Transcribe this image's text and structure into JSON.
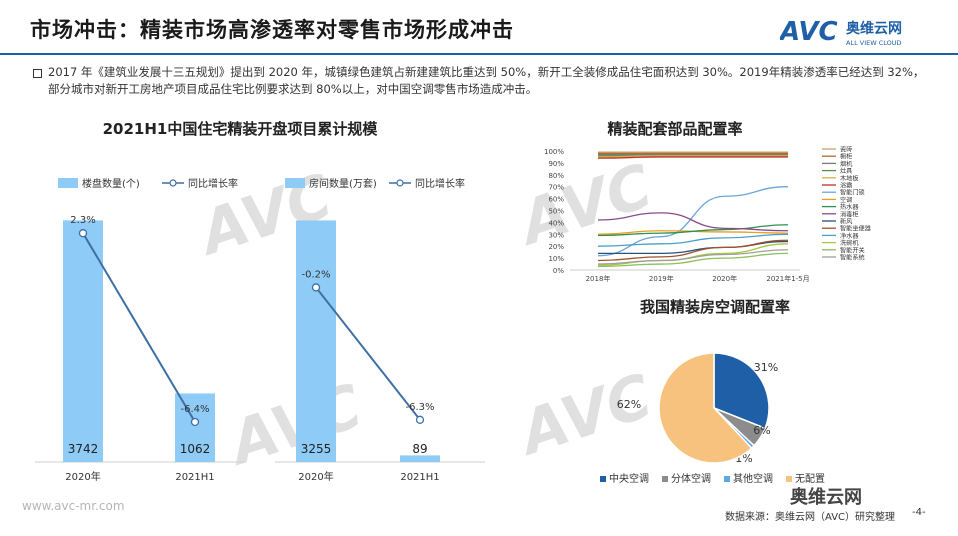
{
  "page": {
    "title": "市场冲击：精装市场高渗透率对零售市场形成冲击",
    "logo_cn": "奥维云网",
    "logo_en": "ALL VIEW CLOUD",
    "logo_mark": "AVC",
    "intro": "2017 年《建筑业发展十三五规划》提出到 2020 年，城镇绿色建筑占新建建筑比重达到 50%，新开工全装修成品住宅面积达到 30%。2019年精装渗透率已经达到 32%，部分城市对新开工房地产项目成品住宅比例要求达到 80%以上，对中国空调零售市场造成冲击。",
    "footer_url": "www.avc-mr.com",
    "footer_source": "数据来源：奥维云网（AVC）研究整理",
    "page_number": "-4-",
    "wechat_label": "奥维云网",
    "watermark_cn": "奥维云网",
    "watermark_en": "ALL VIEW CLOUD"
  },
  "colors": {
    "bar": "#8ecbf7",
    "line": "#3e6fa5",
    "title_line": "#1f5fa8"
  },
  "chart_data": [
    {
      "type": "bar",
      "title": "2021H1中国住宅精装开盘项目累计规模",
      "categories": [
        "2020年",
        "2021H1"
      ],
      "series": [
        {
          "name": "楼盘数量(个)",
          "kind": "bar",
          "values": [
            3742,
            1062
          ]
        },
        {
          "name": "同比增长率",
          "kind": "line",
          "values": [
            2.3,
            -6.4
          ],
          "labels": [
            "2.3%",
            "-6.4%"
          ]
        }
      ]
    },
    {
      "type": "bar",
      "title": "",
      "categories": [
        "2020年",
        "2021H1"
      ],
      "series": [
        {
          "name": "房间数量(万套)",
          "kind": "bar",
          "values": [
            3255,
            89
          ]
        },
        {
          "name": "同比增长率",
          "kind": "line",
          "values": [
            -0.2,
            -6.3
          ],
          "labels": [
            "-0.2%",
            "-6.3%"
          ]
        }
      ]
    },
    {
      "type": "line",
      "title": "精装配套部品配置率",
      "x": [
        "2018年",
        "2019年",
        "2020年",
        "2021年1-5月"
      ],
      "ylim": [
        0,
        100
      ],
      "yticks": [
        "0%",
        "10%",
        "20%",
        "30%",
        "40%",
        "50%",
        "60%",
        "70%",
        "80%",
        "90%",
        "100%"
      ],
      "series": [
        {
          "name": "瓷砖",
          "color": "#c8a070",
          "values": [
            99,
            99,
            99,
            99
          ]
        },
        {
          "name": "橱柜",
          "color": "#b06a30",
          "values": [
            98,
            98,
            98,
            98
          ]
        },
        {
          "name": "烟机",
          "color": "#7a7a7a",
          "values": [
            97,
            97,
            97,
            97
          ]
        },
        {
          "name": "灶具",
          "color": "#5a8f3a",
          "values": [
            96,
            96,
            96,
            96
          ]
        },
        {
          "name": "木地板",
          "color": "#d6b23a",
          "values": [
            95,
            96,
            96,
            96
          ]
        },
        {
          "name": "浴霸",
          "color": "#c03030",
          "values": [
            94,
            95,
            95,
            95
          ]
        },
        {
          "name": "智能门锁",
          "color": "#6aa6d8",
          "values": [
            12,
            28,
            62,
            70
          ]
        },
        {
          "name": "空调",
          "color": "#e8a020",
          "values": [
            30,
            33,
            32,
            31
          ]
        },
        {
          "name": "热水器",
          "color": "#2f8f4f",
          "values": [
            29,
            31,
            34,
            38
          ]
        },
        {
          "name": "消毒柜",
          "color": "#8a4a8a",
          "values": [
            42,
            48,
            35,
            33
          ]
        },
        {
          "name": "新风",
          "color": "#2d4f7a",
          "values": [
            14,
            14,
            19,
            24
          ]
        },
        {
          "name": "智能坐便器",
          "color": "#a0522d",
          "values": [
            8,
            11,
            19,
            25
          ]
        },
        {
          "name": "净水器",
          "color": "#4aa0c8",
          "values": [
            20,
            22,
            27,
            30
          ]
        },
        {
          "name": "洗碗机",
          "color": "#a6c83a",
          "values": [
            4,
            8,
            14,
            22
          ]
        },
        {
          "name": "智能开关",
          "color": "#8fbf5a",
          "values": [
            3,
            5,
            10,
            14
          ]
        },
        {
          "name": "智能系统",
          "color": "#9e9e9e",
          "values": [
            5,
            8,
            13,
            17
          ]
        }
      ]
    },
    {
      "type": "pie",
      "title": "我国精装房空调配置率",
      "slices": [
        {
          "name": "中央空调",
          "value": 31,
          "label": "31%",
          "color": "#1f5fa8"
        },
        {
          "name": "分体空调",
          "value": 6,
          "label": "6%",
          "color": "#8c8c8c"
        },
        {
          "name": "其他空调",
          "value": 1,
          "label": "1%",
          "color": "#5aa8e8"
        },
        {
          "name": "无配置",
          "value": 62,
          "label": "62%",
          "color": "#f7c27d"
        }
      ]
    }
  ]
}
